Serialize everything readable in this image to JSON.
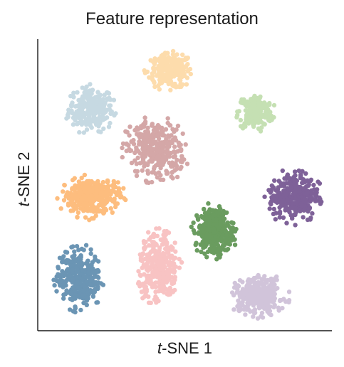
{
  "chart_data": {
    "type": "scatter",
    "title": "Feature representation",
    "xlabel_prefix": "t",
    "xlabel_suffix": "-SNE 1",
    "ylabel_prefix": "t",
    "ylabel_suffix": "-SNE 2",
    "grid": false,
    "legend": "none",
    "series": [
      {
        "color": "#c6d9e2",
        "center": [
          0.18,
          0.76
        ],
        "spread": [
          0.09,
          0.09
        ],
        "count": 260
      },
      {
        "color": "#fddcac",
        "center": [
          0.45,
          0.89
        ],
        "spread": [
          0.09,
          0.07
        ],
        "count": 240
      },
      {
        "color": "#c5e0b3",
        "center": [
          0.74,
          0.75
        ],
        "spread": [
          0.07,
          0.07
        ],
        "count": 210
      },
      {
        "color": "#d4a7a7",
        "center": [
          0.4,
          0.62
        ],
        "spread": [
          0.12,
          0.12
        ],
        "count": 320
      },
      {
        "color": "#fdbd7e",
        "center": [
          0.18,
          0.46
        ],
        "spread": [
          0.12,
          0.08
        ],
        "count": 330
      },
      {
        "color": "#7e6198",
        "center": [
          0.87,
          0.46
        ],
        "spread": [
          0.1,
          0.1
        ],
        "count": 320
      },
      {
        "color": "#6a9c5f",
        "center": [
          0.6,
          0.34
        ],
        "spread": [
          0.08,
          0.1
        ],
        "count": 320
      },
      {
        "color": "#6b95b4",
        "center": [
          0.14,
          0.18
        ],
        "spread": [
          0.09,
          0.12
        ],
        "count": 330
      },
      {
        "color": "#f8c3c3",
        "center": [
          0.41,
          0.22
        ],
        "spread": [
          0.08,
          0.15
        ],
        "count": 320
      },
      {
        "color": "#d1c4da",
        "center": [
          0.75,
          0.12
        ],
        "spread": [
          0.11,
          0.08
        ],
        "count": 300
      }
    ]
  }
}
